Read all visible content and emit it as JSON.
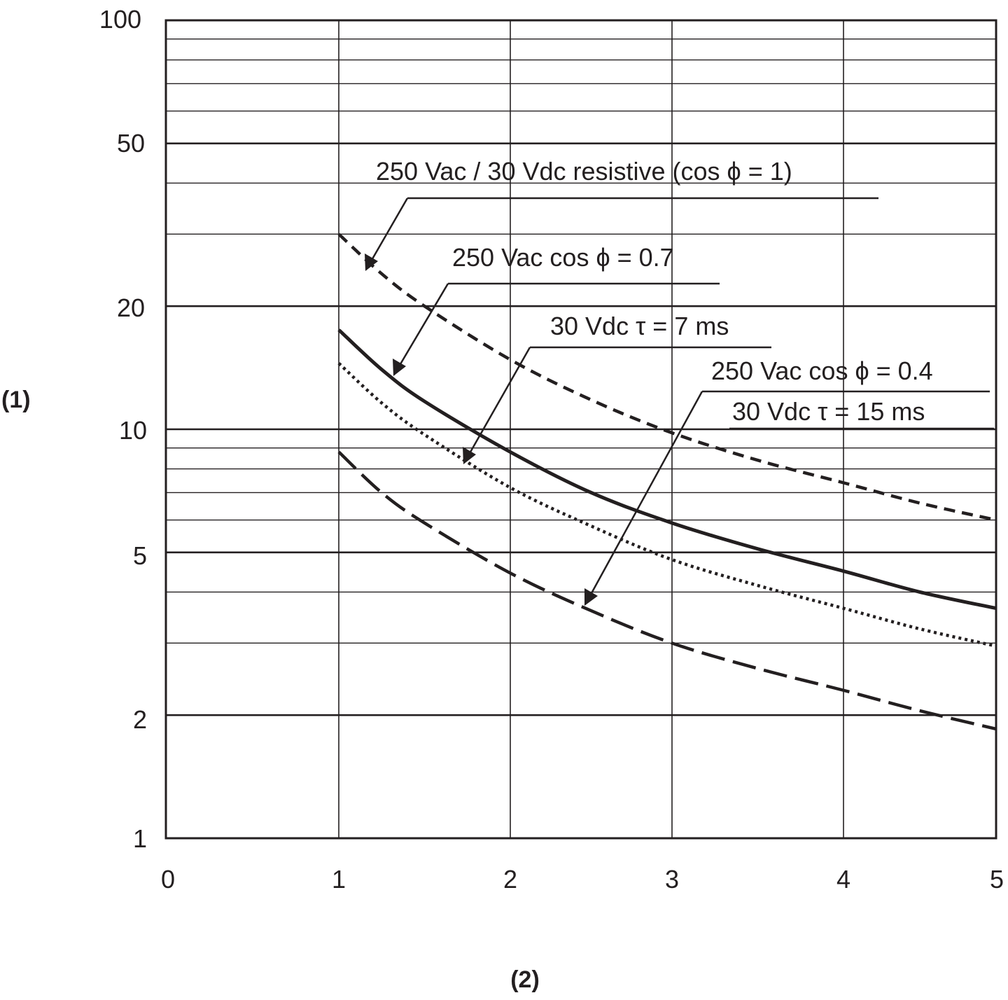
{
  "chart_data": {
    "type": "line",
    "xlabel": "(2)",
    "ylabel": "(1)",
    "xlim": [
      0,
      5
    ],
    "ylim": [
      1,
      100
    ],
    "yscale": "log",
    "grid": true,
    "x_ticks": [
      "0",
      "1",
      "2",
      "3",
      "4",
      "5"
    ],
    "y_ticks": [
      "1",
      "2",
      "5",
      "10",
      "20",
      "50",
      "100"
    ],
    "series": [
      {
        "name": "250 Vac / 30 Vdc  resistive (cos ϕ = 1)",
        "style": "dashed",
        "x": [
          1,
          1.25,
          1.5,
          2,
          2.5,
          3,
          3.5,
          4,
          4.5,
          5
        ],
        "y": [
          30,
          24,
          20,
          14.8,
          11.8,
          9.8,
          8.4,
          7.4,
          6.6,
          6
        ]
      },
      {
        "name": "250 Vac cos ϕ = 0.7",
        "style": "solid",
        "x": [
          1,
          1.25,
          1.5,
          2,
          2.5,
          3,
          3.5,
          4,
          4.5,
          5
        ],
        "y": [
          17.5,
          14,
          11.7,
          8.8,
          7,
          5.9,
          5.1,
          4.5,
          4,
          3.65
        ]
      },
      {
        "name": "30 Vdc  τ = 7 ms",
        "style": "dotted",
        "x": [
          1,
          1.25,
          1.5,
          2,
          2.5,
          3,
          3.5,
          4,
          4.5,
          5
        ],
        "y": [
          14.5,
          11.6,
          9.7,
          7.2,
          5.8,
          4.8,
          4.15,
          3.65,
          3.25,
          2.95
        ]
      },
      {
        "name": "250 Vac cos  ϕ = 0.4 / 30 Vdc  τ = 15 ms",
        "style": "long-dashed",
        "x": [
          1,
          1.25,
          1.5,
          2,
          2.5,
          3,
          3.5,
          4,
          4.5,
          5
        ],
        "y": [
          8.8,
          7,
          5.9,
          4.45,
          3.6,
          3,
          2.6,
          2.3,
          2.05,
          1.85
        ]
      }
    ],
    "annotations": {
      "resistive": "250 Vac / 30 Vdc  resistive (cos ϕ = 1)",
      "cos07": "250 Vac cos ϕ = 0.7",
      "tau7": "30 Vdc  τ = 7 ms",
      "cos04_line1": "250 Vac cos  ϕ = 0.4",
      "cos04_line2": "30 Vdc  τ = 15 ms"
    }
  }
}
